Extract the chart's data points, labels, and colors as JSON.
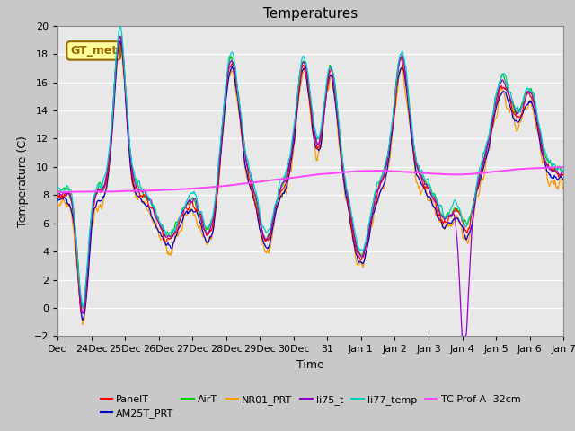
{
  "title": "Temperatures",
  "ylabel": "Temperature (C)",
  "xlabel": "Time",
  "ylim": [
    -2,
    20
  ],
  "xlim": [
    0,
    15
  ],
  "series_colors": {
    "PanelT": "#ff0000",
    "AM25T_PRT": "#0000cc",
    "AirT": "#00cc00",
    "NR01_PRT": "#ff9900",
    "li75_t": "#9900cc",
    "li77_temp": "#00cccc",
    "TC_Prof_A": "#ff44ff"
  },
  "annotation_text": "GT_met",
  "annotation_color": "#996600",
  "annotation_bg": "#ffff99",
  "tick_labels": [
    "Dec",
    "24Dec",
    "25Dec",
    "26Dec",
    "27Dec",
    "28Dec",
    "29Dec",
    "30Dec",
    "31",
    "Jan 1",
    "Jan 2",
    "Jan 3",
    "Jan 4",
    "Jan 5",
    "Jan 6",
    "Jan 7"
  ],
  "yticks": [
    -2,
    0,
    2,
    4,
    6,
    8,
    10,
    12,
    14,
    16,
    18,
    20
  ],
  "fig_facecolor": "#c8c8c8",
  "ax_facecolor": "#e8e8e8",
  "grid_color": "#ffffff",
  "legend_entries": [
    "PanelT",
    "AM25T_PRT",
    "AirT",
    "NR01_PRT",
    "li75_t",
    "li77_temp",
    "TC Prof A -32cm"
  ]
}
